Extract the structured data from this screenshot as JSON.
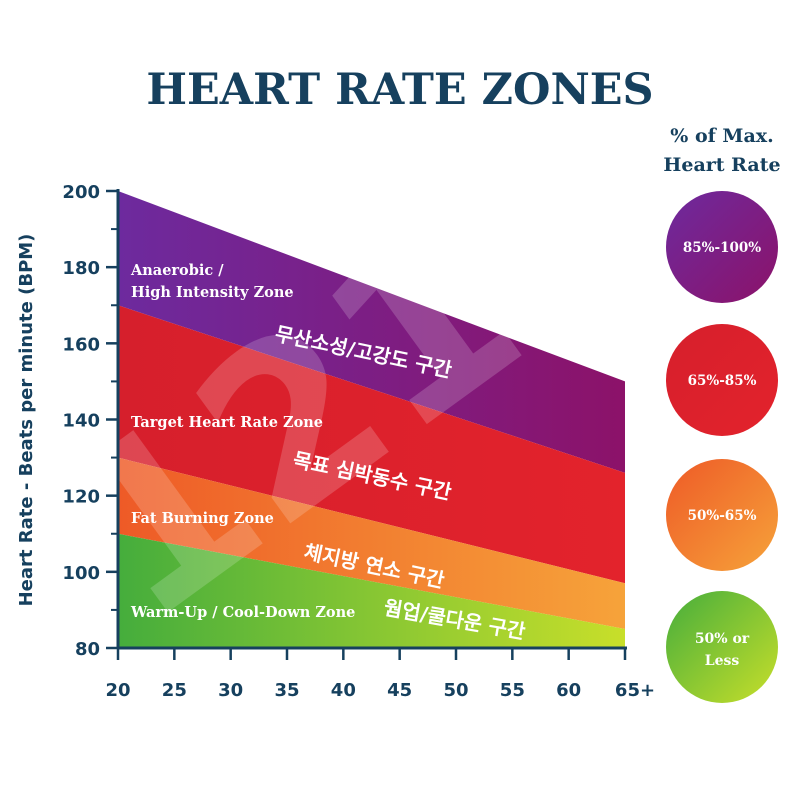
{
  "chart_data": {
    "type": "area",
    "title": "HEART RATE ZONES",
    "ylabel": "Heart Rate - Beats per minute (BPM)",
    "xlabel": "",
    "x": [
      20,
      65
    ],
    "x_ticks": [
      20,
      25,
      30,
      35,
      40,
      45,
      50,
      55,
      60,
      65
    ],
    "x_tick_labels": [
      "20",
      "25",
      "30",
      "35",
      "40",
      "45",
      "50",
      "55",
      "60",
      "65+"
    ],
    "ylim": [
      80,
      200
    ],
    "y_ticks": [
      80,
      100,
      120,
      140,
      160,
      180,
      200
    ],
    "y_tick_labels": [
      "80",
      "100",
      "120",
      "140",
      "160",
      "180",
      "200"
    ],
    "grid": false,
    "legend_title": "% of Max. Heart Rate",
    "series": [
      {
        "name": "Anaerobic / High Intensity Zone",
        "label_ko": "무산소성/고강도 구간",
        "upper": [
          200,
          150
        ],
        "lower": [
          170,
          126
        ],
        "legend": "85%-100%",
        "color_start": "#6d2a9e",
        "color_end": "#8c1269"
      },
      {
        "name": "Target Heart Rate Zone",
        "label_ko": "목표 심박동수 구간",
        "upper": [
          170,
          126
        ],
        "lower": [
          130,
          97
        ],
        "legend": "65%-85%",
        "color_start": "#d61f2c",
        "color_end": "#e3232c"
      },
      {
        "name": "Fat Burning Zone",
        "label_ko": "체지방 연소 구간",
        "upper": [
          130,
          97
        ],
        "lower": [
          110,
          85
        ],
        "legend": "50%-65%",
        "color_start": "#ee5a27",
        "color_end": "#f6a33a"
      },
      {
        "name": "Warm-Up / Cool-Down Zone",
        "label_ko": "웜업/쿨다운 구간",
        "upper": [
          110,
          85
        ],
        "lower": [
          80,
          80
        ],
        "legend": "50% or Less",
        "color_start": "#45ad3c",
        "color_end": "#c8df2a"
      }
    ],
    "watermark": "1214"
  },
  "colors": {
    "title": "#16405e",
    "axis": "#16405e",
    "zone_label": "#ffffff",
    "watermark": "#ffffff"
  }
}
